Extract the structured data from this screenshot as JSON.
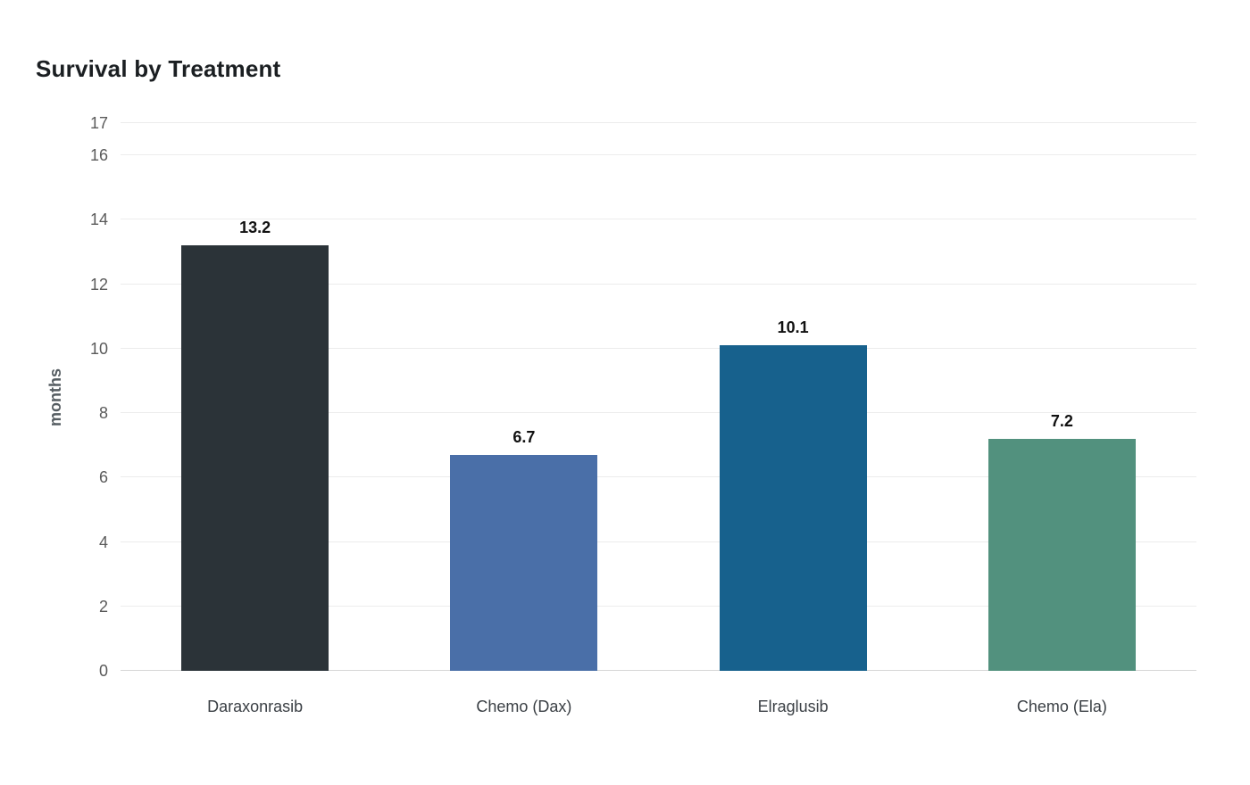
{
  "chart": {
    "title": "Survival by Treatment",
    "ylabel": "months"
  },
  "chart_data": {
    "type": "bar",
    "title": "Survival by Treatment",
    "xlabel": "",
    "ylabel": "months",
    "categories": [
      "Daraxonrasib",
      "Chemo (Dax)",
      "Elraglusib",
      "Chemo (Ela)"
    ],
    "values": [
      13.2,
      6.7,
      10.1,
      7.2
    ],
    "value_labels": [
      "13.2",
      "6.7",
      "10.1",
      "7.2"
    ],
    "bar_colors": [
      "#2b3338",
      "#4a6fa8",
      "#17618d",
      "#52917e"
    ],
    "ylim": [
      0,
      17
    ],
    "yticks": [
      0,
      2,
      4,
      6,
      8,
      10,
      12,
      14,
      16,
      17
    ],
    "grid": true,
    "legend": false,
    "background": "#ffffff",
    "gridline_color": "#ececec",
    "title_color": "#1b1f22",
    "tick_label_color": "#5a5a5a",
    "value_label_color": "#111111"
  }
}
